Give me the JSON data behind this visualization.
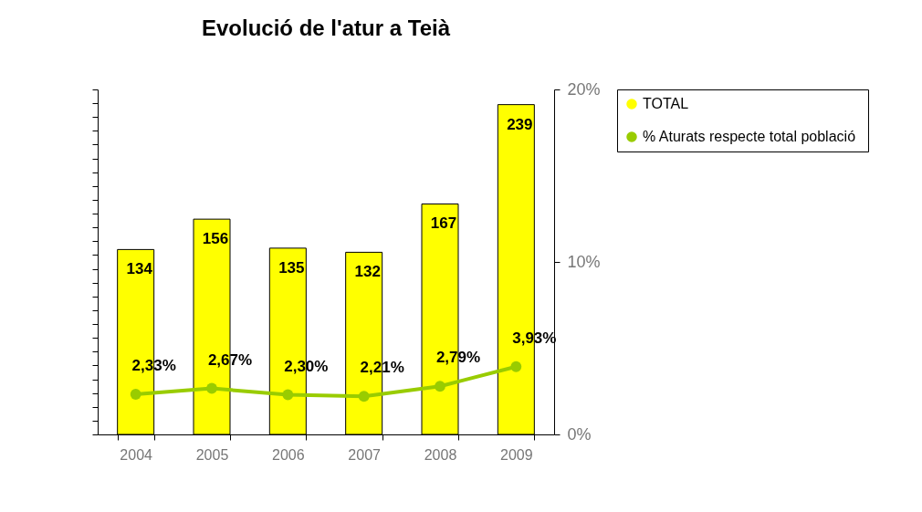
{
  "chart_data": {
    "type": "bar",
    "title": "Evolució de l'atur a Teià",
    "categories": [
      "2004",
      "2005",
      "2006",
      "2007",
      "2008",
      "2009"
    ],
    "series": [
      {
        "name": "TOTAL",
        "color": "#ffff00",
        "values": [
          134,
          156,
          135,
          132,
          167,
          239
        ],
        "value_labels": [
          "134",
          "156",
          "135",
          "132",
          "167",
          "239"
        ]
      },
      {
        "name": "% Aturats respecte  total població",
        "type": "line",
        "axis": "y2",
        "color": "#99cc00",
        "marker": "circle",
        "values": [
          2.33,
          2.67,
          2.3,
          2.21,
          2.79,
          3.93
        ],
        "value_labels": [
          "2,33%",
          "2,67%",
          "2,30%",
          "2,21%",
          "2,79%",
          "3,93%"
        ]
      }
    ],
    "ylim": [
      0,
      250
    ],
    "y2lim": [
      0,
      20
    ],
    "y2ticks": [
      {
        "value": 0,
        "label": "0%"
      },
      {
        "value": 10,
        "label": "10%"
      },
      {
        "value": 20,
        "label": "20%"
      }
    ],
    "tick_labels": [
      "x",
      "y2"
    ],
    "grid": false,
    "legend": "right"
  }
}
